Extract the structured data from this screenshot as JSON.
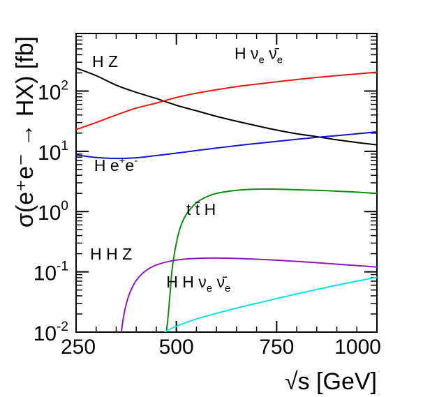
{
  "chart_data": {
    "type": "line",
    "xlabel": "√s [GeV]",
    "ylabel": "σ(e⁺e⁻ → HX) [fb]",
    "xlim": [
      250,
      1000
    ],
    "ylim": [
      0.01,
      900
    ],
    "yscale": "log",
    "x_ticks": [
      {
        "value": 250,
        "label": "250"
      },
      {
        "value": 500,
        "label": "500"
      },
      {
        "value": 750,
        "label": "750"
      },
      {
        "value": 1000,
        "label": "1000"
      }
    ],
    "y_ticks": [
      {
        "value": 0.01,
        "base": "10",
        "exp": "-2"
      },
      {
        "value": 0.1,
        "base": "10",
        "exp": "-1"
      },
      {
        "value": 1,
        "base": "10",
        "exp": "0"
      },
      {
        "value": 10,
        "base": "10",
        "exp": "1"
      },
      {
        "value": 100,
        "base": "10",
        "exp": "2"
      }
    ],
    "series": [
      {
        "name": "HZ",
        "color": "#000000",
        "x": [
          250,
          300,
          350,
          400,
          450,
          500,
          550,
          600,
          650,
          700,
          750,
          800,
          850,
          900,
          950,
          1000
        ],
        "y": [
          240,
          180,
          125,
          95,
          75,
          58,
          47,
          38,
          31.5,
          26.5,
          22.5,
          19.5,
          17.5,
          15.5,
          14,
          12.8
        ]
      },
      {
        "name": "Hνν̄",
        "color": "#e8160f",
        "x": [
          250,
          300,
          350,
          400,
          450,
          500,
          550,
          600,
          650,
          700,
          750,
          800,
          850,
          900,
          950,
          1000
        ],
        "y": [
          23,
          30,
          40,
          52,
          63,
          78,
          92,
          105,
          118,
          130,
          142,
          155,
          168,
          180,
          192,
          205
        ]
      },
      {
        "name": "He⁺e⁻",
        "color": "#1515d0",
        "x": [
          250,
          300,
          350,
          400,
          450,
          500,
          550,
          600,
          650,
          700,
          750,
          800,
          850,
          900,
          950,
          1000
        ],
        "y": [
          8.7,
          7.9,
          7.6,
          7.8,
          8.5,
          9.3,
          10.3,
          11.3,
          12.4,
          13.5,
          14.6,
          15.8,
          17,
          18.2,
          19.5,
          21
        ]
      },
      {
        "name": "tt̄H",
        "color": "#108a10",
        "x": [
          475,
          480,
          485,
          490,
          500,
          510,
          525,
          550,
          575,
          600,
          650,
          700,
          750,
          800,
          850,
          900,
          950,
          1000
        ],
        "y": [
          0.01,
          0.02,
          0.05,
          0.12,
          0.3,
          0.55,
          0.9,
          1.4,
          1.75,
          2.0,
          2.25,
          2.35,
          2.35,
          2.3,
          2.25,
          2.18,
          2.1,
          2.0
        ]
      },
      {
        "name": "HHZ",
        "color": "#8a18c8",
        "x": [
          363,
          367,
          372,
          380,
          390,
          400,
          420,
          450,
          500,
          550,
          600,
          650,
          700,
          750,
          800,
          850,
          900,
          950,
          1000
        ],
        "y": [
          0.01,
          0.016,
          0.024,
          0.038,
          0.055,
          0.072,
          0.1,
          0.13,
          0.157,
          0.167,
          0.17,
          0.167,
          0.162,
          0.156,
          0.149,
          0.142,
          0.134,
          0.127,
          0.12
        ]
      },
      {
        "name": "HHνν̄",
        "color": "#10e0e8",
        "x": [
          470,
          500,
          550,
          600,
          650,
          700,
          750,
          800,
          850,
          900,
          950,
          1000
        ],
        "y": [
          0.01,
          0.0125,
          0.0165,
          0.0205,
          0.025,
          0.03,
          0.036,
          0.043,
          0.051,
          0.06,
          0.07,
          0.081
        ]
      }
    ],
    "annotations": [
      {
        "series": "HZ",
        "main": "H Z",
        "x": 290,
        "y": 250
      },
      {
        "series": "Hνν̄",
        "main": "H ν",
        "sub1": "e",
        "mid": " ν̄",
        "sub2": "e",
        "x": 645,
        "y": 340
      },
      {
        "series": "He⁺e⁻",
        "main": "H e",
        "sup1": "+",
        "mid": "e",
        "sup2": "-",
        "x": 295,
        "y": 4.7
      },
      {
        "series": "tt̄H",
        "main": "t t̄ H",
        "x": 525,
        "y": 0.88
      },
      {
        "series": "HHZ",
        "main": "H H Z",
        "x": 285,
        "y": 0.16
      },
      {
        "series": "HHνν̄",
        "main": "H H ν",
        "sub1": "e",
        "mid": " ν̄",
        "sub2": "e",
        "x": 475,
        "y": 0.055
      }
    ]
  }
}
